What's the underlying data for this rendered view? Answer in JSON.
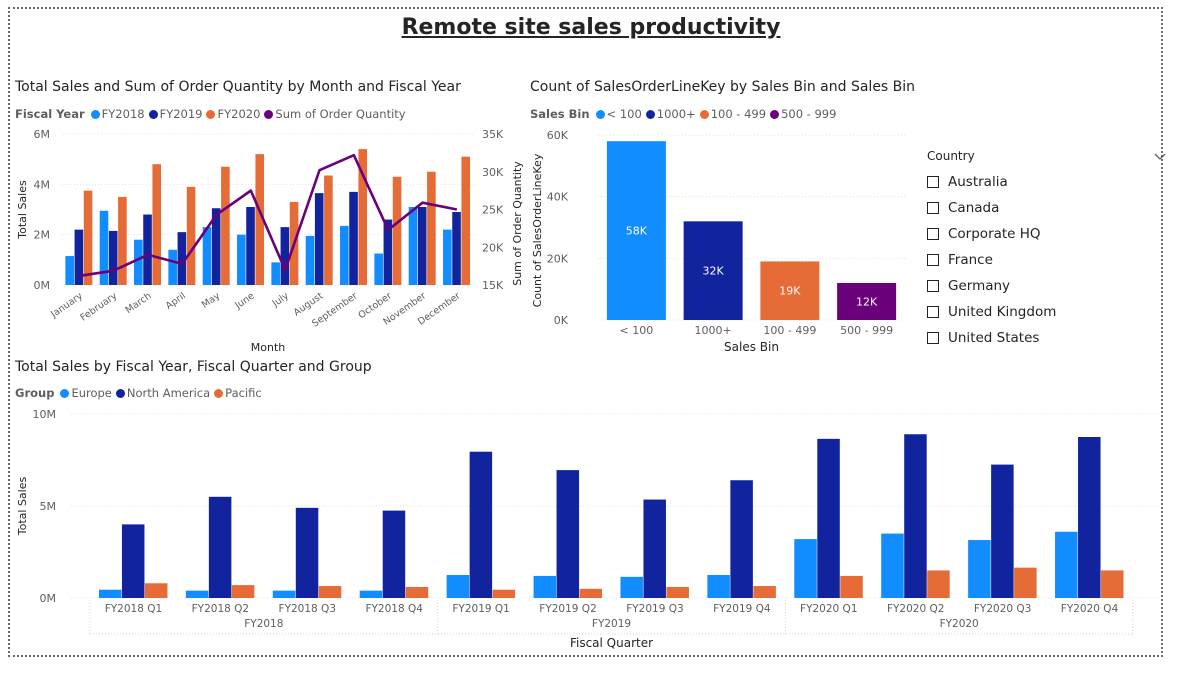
{
  "page": {
    "title": "Remote site sales productivity"
  },
  "colors": {
    "fy2018": "#118DFF",
    "fy2019": "#12239E",
    "fy2020": "#E66C37",
    "qty": "#6B007B"
  },
  "chart1": {
    "title": "Total Sales and Sum of Order Quantity by Month and Fiscal Year",
    "legend_title": "Fiscal Year",
    "legend": [
      "FY2018",
      "FY2019",
      "FY2020",
      "Sum of Order Quantity"
    ]
  },
  "chart2": {
    "title": "Count of SalesOrderLineKey by Sales Bin and Sales Bin",
    "legend_title": "Sales Bin",
    "legend": [
      "< 100",
      "1000+",
      "100 - 499",
      "500 - 999"
    ]
  },
  "chart3": {
    "title": "Total Sales by Fiscal Year, Fiscal Quarter and Group",
    "legend_title": "Group",
    "legend": [
      "Europe",
      "North America",
      "Pacific"
    ]
  },
  "slicer": {
    "title": "Country",
    "items": [
      "Australia",
      "Canada",
      "Corporate HQ",
      "France",
      "Germany",
      "United Kingdom",
      "United States"
    ]
  },
  "chart_data": [
    {
      "type": "bar",
      "title": "Total Sales and Sum of Order Quantity by Month and Fiscal Year",
      "xlabel": "Month",
      "ylabel": "Total Sales",
      "y2label": "Sum of Order Quantity",
      "yticks": [
        "0M",
        "2M",
        "4M",
        "6M"
      ],
      "y2ticks": [
        "15K",
        "20K",
        "25K",
        "30K",
        "35K"
      ],
      "ylim": [
        0,
        6
      ],
      "y2lim": [
        15000,
        35000
      ],
      "categories": [
        "January",
        "February",
        "March",
        "April",
        "May",
        "June",
        "July",
        "August",
        "September",
        "October",
        "November",
        "December"
      ],
      "series": [
        {
          "name": "FY2018",
          "values": [
            1.15,
            2.95,
            1.8,
            1.4,
            2.3,
            2.0,
            0.9,
            1.95,
            2.35,
            1.25,
            3.1,
            2.2
          ]
        },
        {
          "name": "FY2019",
          "values": [
            2.2,
            2.15,
            2.8,
            2.1,
            3.05,
            3.1,
            2.3,
            3.65,
            3.7,
            2.6,
            3.1,
            2.9
          ]
        },
        {
          "name": "FY2020",
          "values": [
            3.75,
            3.5,
            4.8,
            3.9,
            4.7,
            5.2,
            3.3,
            4.35,
            5.4,
            4.3,
            4.5,
            5.1
          ]
        }
      ],
      "line": {
        "name": "Sum of Order Quantity",
        "values": [
          16200,
          16900,
          19000,
          17800,
          24300,
          27500,
          17000,
          30200,
          32200,
          22300,
          25900,
          25000
        ]
      }
    },
    {
      "type": "bar",
      "title": "Count of SalesOrderLineKey by Sales Bin and Sales Bin",
      "xlabel": "Sales Bin",
      "ylabel": "Count of SalesOrderLineKey",
      "yticks": [
        "0K",
        "20K",
        "40K",
        "60K"
      ],
      "ylim": [
        0,
        60000
      ],
      "categories": [
        "< 100",
        "1000+",
        "100 - 499",
        "500 - 999"
      ],
      "values": [
        58000,
        32000,
        19000,
        12000
      ],
      "data_labels": [
        "58K",
        "32K",
        "19K",
        "12K"
      ]
    },
    {
      "type": "bar",
      "title": "Total Sales by Fiscal Year, Fiscal Quarter and Group",
      "xlabel": "Fiscal Quarter",
      "ylabel": "Total Sales",
      "yticks": [
        "0M",
        "5M",
        "10M"
      ],
      "ylim": [
        0,
        10
      ],
      "categories": [
        "FY2018 Q1",
        "FY2018 Q2",
        "FY2018 Q3",
        "FY2018 Q4",
        "FY2019 Q1",
        "FY2019 Q2",
        "FY2019 Q3",
        "FY2019 Q4",
        "FY2020 Q1",
        "FY2020 Q2",
        "FY2020 Q3",
        "FY2020 Q4"
      ],
      "groups": [
        "FY2018",
        "FY2019",
        "FY2020"
      ],
      "series": [
        {
          "name": "Europe",
          "values": [
            0.45,
            0.4,
            0.4,
            0.4,
            1.25,
            1.2,
            1.15,
            1.25,
            3.2,
            3.5,
            3.15,
            3.6
          ]
        },
        {
          "name": "North America",
          "values": [
            4.0,
            5.5,
            4.9,
            4.75,
            7.95,
            6.95,
            5.35,
            6.4,
            8.65,
            8.9,
            7.25,
            8.75
          ]
        },
        {
          "name": "Pacific",
          "values": [
            0.8,
            0.7,
            0.65,
            0.6,
            0.45,
            0.5,
            0.6,
            0.65,
            1.2,
            1.5,
            1.65,
            1.5
          ]
        }
      ]
    }
  ]
}
